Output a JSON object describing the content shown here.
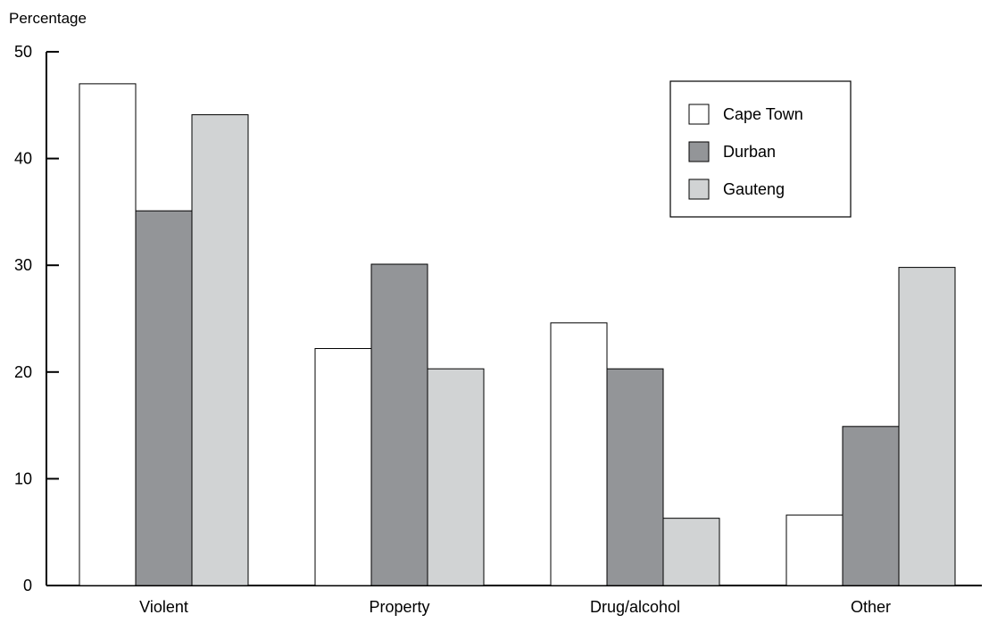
{
  "chart_data": {
    "type": "bar",
    "ylabel": "Percentage",
    "xlabel": "",
    "ylim": [
      0,
      50
    ],
    "yticks": [
      0,
      10,
      20,
      30,
      40,
      50
    ],
    "categories": [
      "Violent",
      "Property",
      "Drug/alcohol",
      "Other"
    ],
    "series": [
      {
        "name": "Cape Town",
        "color": "#ffffff",
        "values": [
          47,
          22.2,
          24.6,
          6.6
        ]
      },
      {
        "name": "Durban",
        "color": "#939598",
        "values": [
          35.1,
          30.1,
          20.3,
          14.9
        ]
      },
      {
        "name": "Gauteng",
        "color": "#d1d3d4",
        "values": [
          44.1,
          20.3,
          6.3,
          29.8
        ]
      }
    ],
    "legend_position": "top-right",
    "grid": false
  }
}
